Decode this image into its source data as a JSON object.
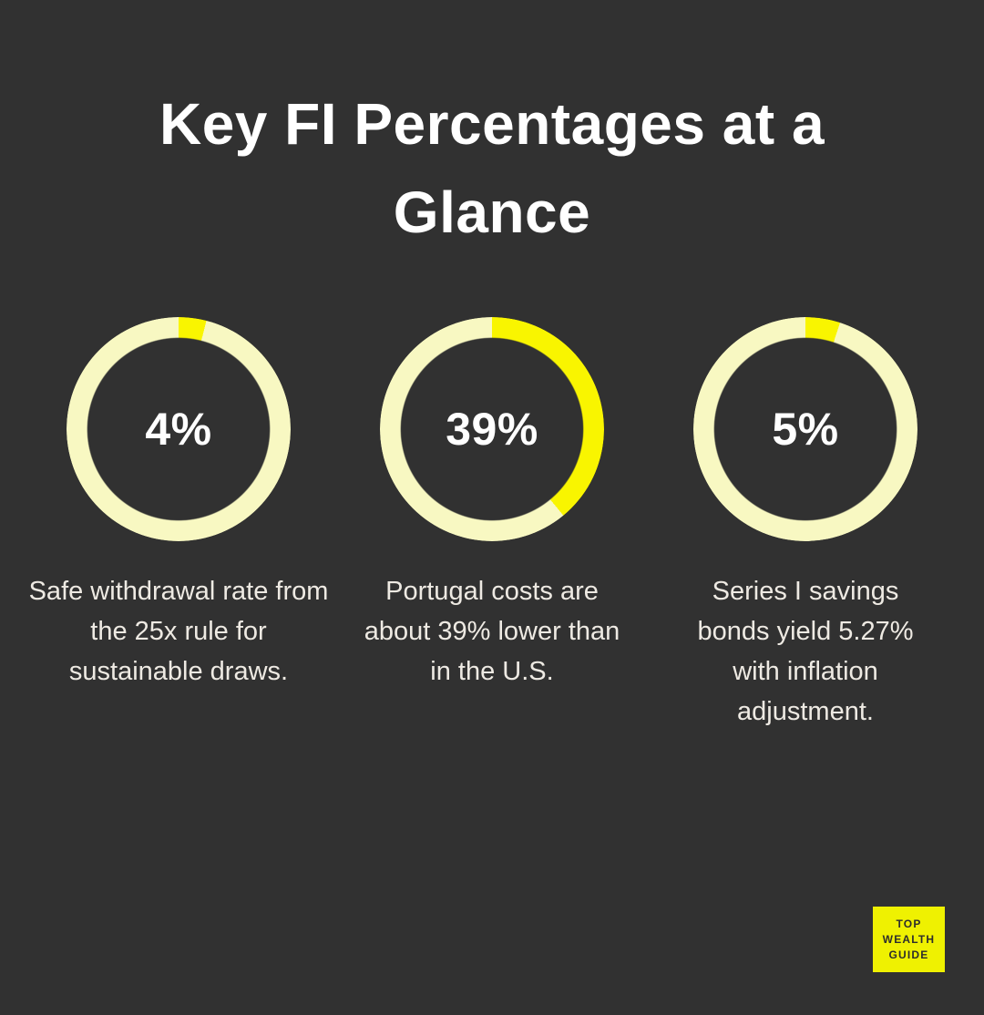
{
  "title": {
    "text": "Key FI Percentages at a Glance"
  },
  "colors": {
    "background": "#313131",
    "title_text": "#ffffff",
    "caption_text": "#eeeae3",
    "percent_text": "#ffffff",
    "ring_track": "#f8f8c2",
    "ring_fill": "#f9f500",
    "badge_bg": "#eff101",
    "badge_text": "#2d2d2d"
  },
  "chart_data": {
    "type": "donut",
    "unit": "percent",
    "start_angle_deg": 0,
    "direction": "clockwise",
    "items": [
      {
        "value": 4,
        "label": "4%",
        "caption": "Safe withdrawal rate from the 25x rule for sustainable draws."
      },
      {
        "value": 39,
        "label": "39%",
        "caption": "Portugal costs are about 39% lower than in the U.S."
      },
      {
        "value": 5,
        "label": "5%",
        "caption": "Series I savings bonds yield 5.27% with inflation adjustment."
      }
    ]
  },
  "badge": {
    "lines": [
      "TOP",
      "WEALTH",
      "GUIDE"
    ]
  }
}
